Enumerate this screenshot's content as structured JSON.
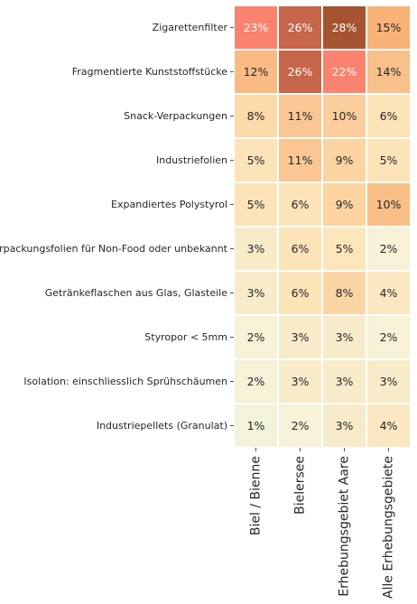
{
  "chart_data": {
    "type": "heatmap",
    "rows": [
      "Zigarettenfilter",
      "Fragmentierte Kunststoffstücke",
      "Snack-Verpackungen",
      "Industriefolien ",
      "Expandiertes Polystyrol",
      "Verpackungsfolien für Non-Food oder unbekannt ",
      "Getränkeflaschen aus Glas, Glasteile ",
      "Styropor < 5mm",
      "Isolation: einschliesslich Sprühschäumen",
      "Industriepellets (Granulat) "
    ],
    "columns": [
      "Biel / Bienne",
      "Bielersee",
      "Erhebungsgebiet Aare",
      "Alle Erhebungsgebiete"
    ],
    "values": [
      [
        23,
        26,
        28,
        15
      ],
      [
        12,
        26,
        22,
        14
      ],
      [
        8,
        11,
        10,
        6
      ],
      [
        5,
        11,
        9,
        5
      ],
      [
        5,
        6,
        9,
        10
      ],
      [
        3,
        6,
        5,
        2
      ],
      [
        3,
        6,
        8,
        4
      ],
      [
        2,
        3,
        3,
        2
      ],
      [
        2,
        3,
        3,
        3
      ],
      [
        1,
        2,
        3,
        4
      ]
    ],
    "value_suffix": "%",
    "colorbar": false,
    "cell_colors": [
      [
        "#f9836f",
        "#c7664b",
        "#a55330",
        "#f8b278"
      ],
      [
        "#f9bb83",
        "#c7664b",
        "#f9836f",
        "#f8c08a"
      ],
      [
        "#fcdaa9",
        "#fac794",
        "#fbce9c",
        "#fde3b8"
      ],
      [
        "#fde3b8",
        "#fac794",
        "#fcd3a1",
        "#fde3b8"
      ],
      [
        "#fde3b8",
        "#fde3b8",
        "#fcd3a1",
        "#f9bf87"
      ],
      [
        "#f7ebca",
        "#fde3b8",
        "#fde5bb",
        "#f6f1d7"
      ],
      [
        "#f7ebca",
        "#fde3b8",
        "#fcd5a4",
        "#fbe7c2"
      ],
      [
        "#f6f1d7",
        "#f7ebca",
        "#f7ebca",
        "#f6f1d7"
      ],
      [
        "#f6f1d7",
        "#f7ebca",
        "#f7ebca",
        "#f7ebca"
      ],
      [
        "#f3f3da",
        "#f6f1d7",
        "#f7ebca",
        "#fbe7c2"
      ]
    ],
    "text_colors": {
      "light": "#ffffff",
      "dark": "#262626"
    },
    "light_text_threshold": 20
  }
}
